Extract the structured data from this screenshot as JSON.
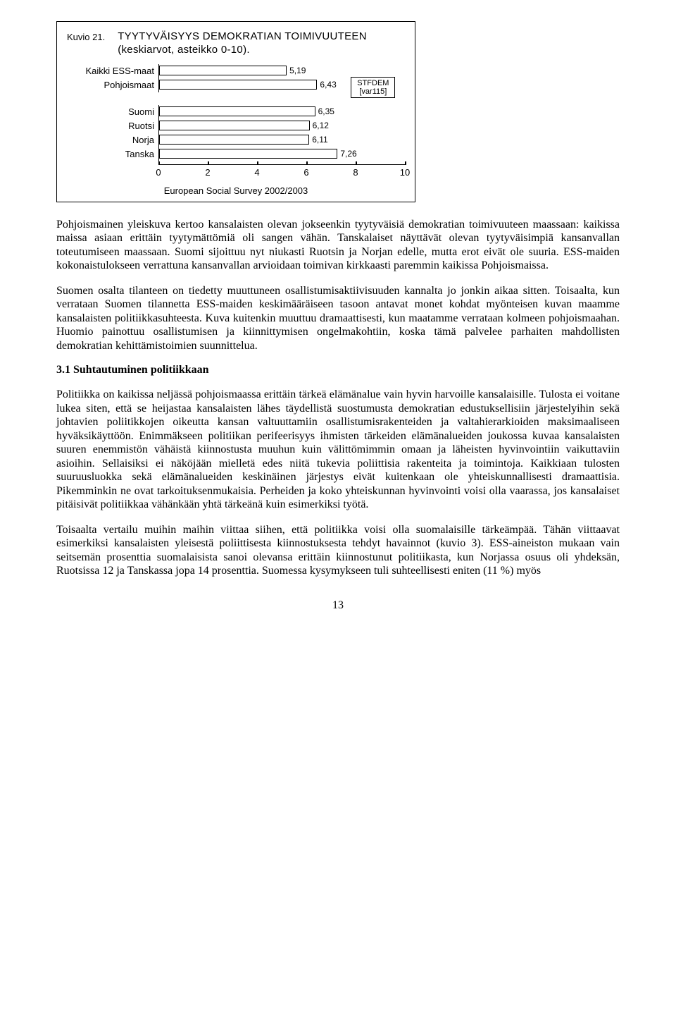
{
  "figure": {
    "kuvio_label": "Kuvio 21.",
    "title_line": "TYYTYVÄISYYS DEMOKRATIAN TOIMIVUUTEEN (keskiarvot, asteikko 0-10).",
    "caption": "European Social Survey 2002/2003",
    "legend_line1": "STFDEM",
    "legend_line2": "[var115]",
    "xmax": 10,
    "ticks": [
      "0",
      "2",
      "4",
      "6",
      "8",
      "10"
    ],
    "groups": [
      {
        "cat": "Kaikki ESS-maat",
        "val": 5.19,
        "label": "5,19"
      },
      {
        "cat": "Pohjoismaat",
        "val": 6.43,
        "label": "6,43"
      }
    ],
    "countries": [
      {
        "cat": "Suomi",
        "val": 6.35,
        "label": "6,35"
      },
      {
        "cat": "Ruotsi",
        "val": 6.12,
        "label": "6,12"
      },
      {
        "cat": "Norja",
        "val": 6.11,
        "label": "6,11"
      },
      {
        "cat": "Tanska",
        "val": 7.26,
        "label": "7,26"
      }
    ]
  },
  "paragraphs": {
    "p1": "Pohjoismainen yleiskuva kertoo kansalaisten olevan jokseenkin tyytyväisiä demokratian toimivuuteen maassaan: kaikissa maissa asiaan erittäin tyytymättömiä oli sangen vähän. Tanskalaiset näyttävät olevan tyytyväisimpiä kansanvallan toteutumiseen maassaan. Suomi sijoittuu nyt niukasti Ruotsin ja Norjan edelle, mutta erot eivät ole suuria. ESS-maiden kokonaistulokseen verrattuna kansanvallan arvioidaan toimivan kirkkaasti paremmin kaikissa Pohjoismaissa.",
    "p2": "Suomen osalta tilanteen on tiedetty muuttuneen osallistumisaktiivisuuden kannalta jo jonkin aikaa sitten. Toisaalta, kun verrataan Suomen tilannetta ESS-maiden keskimääräiseen tasoon antavat monet kohdat myönteisen kuvan maamme kansalaisten politiikkasuhteesta. Kuva kuitenkin muuttuu dramaattisesti, kun maatamme verrataan kolmeen pohjoismaahan. Huomio painottuu osallistumisen ja kiinnittymisen ongelmakohtiin, koska tämä palvelee parhaiten mahdollisten demokratian kehittämistoimien suunnittelua.",
    "p3": "Politiikka on kaikissa neljässä pohjoismaassa erittäin tärkeä elämänalue vain hyvin harvoille kansalaisille. Tulosta ei voitane lukea siten, että se heijastaa kansalaisten lähes täydellistä suostumusta demokratian edustuksellisiin järjestelyihin sekä johtavien poliitikkojen oikeutta kansan valtuuttamiin osallistumisrakenteiden ja valtahierarkioiden maksimaaliseen hyväksikäyttöön. Enimmäkseen politiikan perifeerisyys ihmisten tärkeiden elämänalueiden joukossa kuvaa kansalaisten suuren enemmistön vähäistä kiinnostusta muuhun kuin välittömimmin omaan ja läheisten hyvinvointiin vaikuttaviin asioihin. Sellaisiksi ei näköjään mielletä edes niitä tukevia poliittisia rakenteita ja toimintoja. Kaikkiaan tulosten suuruusluokka sekä elämänalueiden keskinäinen järjestys eivät kuitenkaan ole yhteiskunnallisesti dramaattisia. Pikemminkin ne ovat tarkoituksenmukaisia. Perheiden ja koko yhteiskunnan hyvinvointi voisi olla vaarassa, jos kansalaiset pitäisivät politiikkaa vähänkään yhtä tärkeänä kuin esimerkiksi työtä.",
    "p4": "Toisaalta vertailu muihin maihin viittaa siihen, että politiikka voisi olla suomalaisille tärkeämpää. Tähän viittaavat esimerkiksi kansalaisten yleisestä poliittisesta kiinnostuksesta tehdyt havainnot (kuvio 3). ESS-aineiston mukaan vain seitsemän prosenttia suomalaisista sanoi olevansa erittäin kiinnostunut politiikasta, kun Norjassa osuus oli yhdeksän, Ruotsissa 12 ja Tanskassa jopa 14 prosenttia. Suomessa kysymykseen tuli suhteellisesti eniten (11 %) myös"
  },
  "section_heading": "3.1 Suhtautuminen politiikkaan",
  "page_number": "13"
}
